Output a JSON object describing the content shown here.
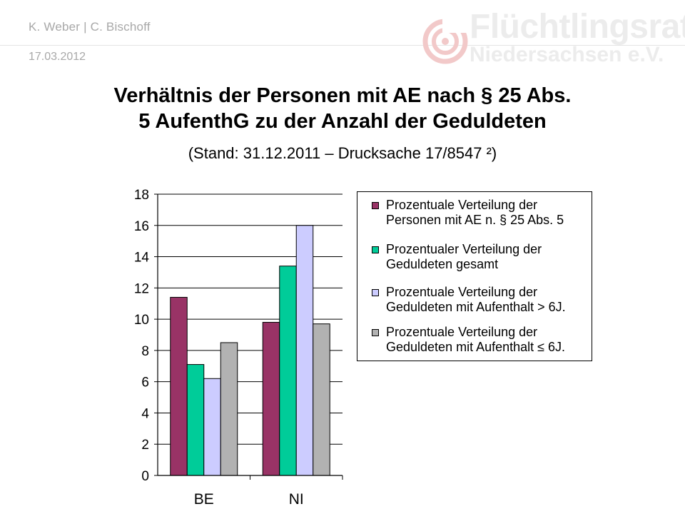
{
  "header": {
    "authors": "K. Weber | C. Bischoff",
    "date": "17.03.2012",
    "logo": {
      "line1": "Flüchtlingsrat",
      "line2": "Niedersachsen e.V.",
      "color": "#ececec",
      "icon": "spiral-target-icon"
    }
  },
  "slide": {
    "title_line1": "Verhältnis der Personen mit AE nach § 25 Abs.",
    "title_line2": "5 AufenthG zu der Anzahl der Geduldeten",
    "subtitle": "(Stand: 31.12.2011 – Drucksache 17/8547 ²)"
  },
  "chart_data": {
    "type": "bar",
    "categories": [
      "BE",
      "NI"
    ],
    "series": [
      {
        "name": "Prozentuale Verteilung der Personen mit AE n. § 25 Abs. 5",
        "line1": "Prozentuale Verteilung der",
        "line2": "Personen mit AE n. § 25 Abs. 5",
        "color": "#993366",
        "values": [
          11.4,
          9.8
        ]
      },
      {
        "name": "Prozentualer Verteilung der Geduldeten gesamt",
        "line1": "Prozentualer Verteilung der",
        "line2": "Geduldeten gesamt",
        "color": "#00cc99",
        "values": [
          7.1,
          13.4
        ]
      },
      {
        "name": "Prozentuale Verteilung der Geduldeten mit Aufenthalt > 6J.",
        "line1": "Prozentuale Verteilung der",
        "line2": "Geduldeten mit Aufenthalt > 6J.",
        "color": "#ccccff",
        "values": [
          6.2,
          16.0
        ]
      },
      {
        "name": "Prozentuale Verteilung der Geduldeten mit Aufenthalt ≤ 6J.",
        "line1": "Prozentuale Verteilung der",
        "line2": "Geduldeten mit Aufenthalt ≤ 6J.",
        "color": "#b2b2b2",
        "values": [
          8.5,
          9.7
        ]
      }
    ],
    "yticks": [
      "0",
      "2",
      "4",
      "6",
      "8",
      "10",
      "12",
      "14",
      "16",
      "18"
    ],
    "ylim": [
      0,
      18
    ],
    "grid": true,
    "legend_position": "right"
  }
}
